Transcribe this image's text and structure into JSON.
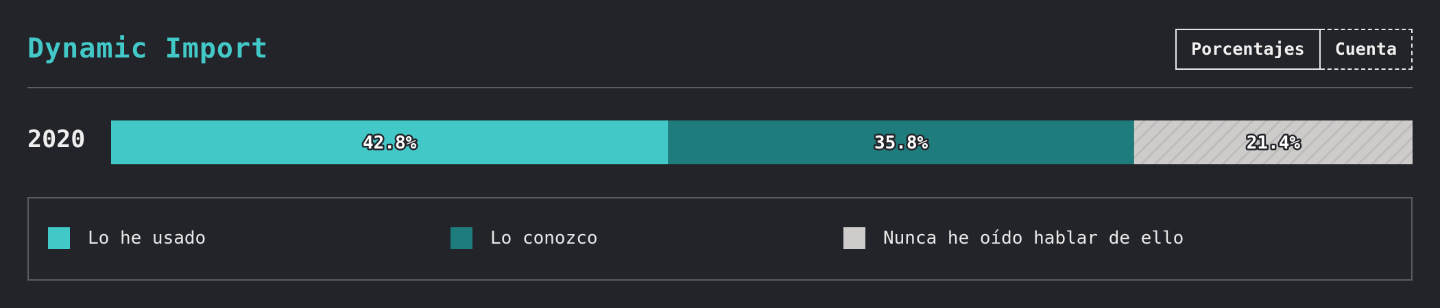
{
  "header": {
    "title": "Dynamic Import",
    "toggle": {
      "percent_label": "Porcentajes",
      "count_label": "Cuenta"
    }
  },
  "colors": {
    "accent": "#43c8c8",
    "used": "#43c8c8",
    "know": "#1f7c7c",
    "never": "#cdcccb"
  },
  "chart_data": {
    "type": "bar",
    "orientation": "horizontal",
    "stacked": true,
    "categories": [
      "2020"
    ],
    "series": [
      {
        "name": "Lo he usado",
        "values": [
          42.8
        ],
        "label": "42.8%",
        "color": "#43c8c8"
      },
      {
        "name": "Lo conozco",
        "values": [
          35.8
        ],
        "label": "35.8%",
        "color": "#1f7c7c"
      },
      {
        "name": "Nunca he oído hablar de ello",
        "values": [
          21.4
        ],
        "label": "21.4%",
        "color": "#cdcccb",
        "pattern": "diagonal-stripes"
      }
    ],
    "xlim": [
      0,
      100
    ],
    "unit": "%",
    "legend_position": "bottom"
  },
  "legend": {
    "items": [
      {
        "label": "Lo he usado",
        "color": "#43c8c8"
      },
      {
        "label": "Lo conozco",
        "color": "#1f7c7c"
      },
      {
        "label": "Nunca he oído hablar de ello",
        "color": "#cdcccb"
      }
    ]
  }
}
